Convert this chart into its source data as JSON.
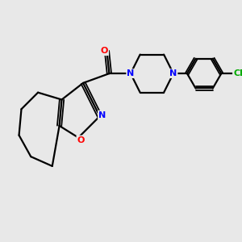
{
  "background_color": "#e8e8e8",
  "bond_color": "#000000",
  "atom_colors": {
    "N": "#0000ff",
    "O_carbonyl": "#ff0000",
    "O_ring": "#ff0000",
    "Cl": "#00aa00",
    "C": "#000000"
  },
  "figsize": [
    3.0,
    3.0
  ],
  "dpi": 100,
  "xlim": [
    0,
    10
  ],
  "ylim": [
    0,
    10
  ]
}
